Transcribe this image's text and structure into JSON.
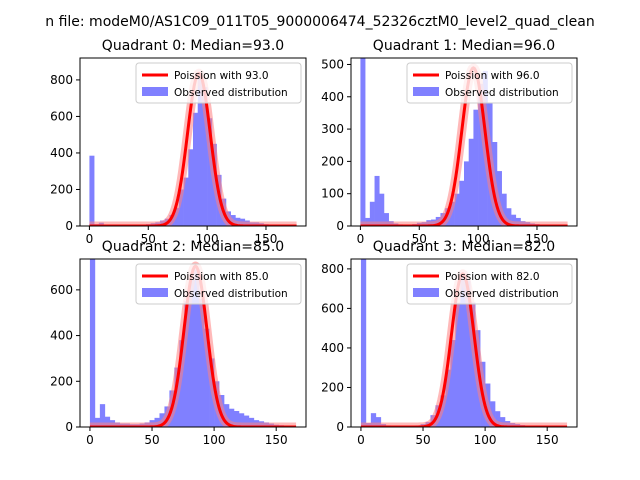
{
  "figure": {
    "suptitle": "n file: modeM0/AS1C09_011T05_9000006474_52326cztM0_level2_quad_clean"
  },
  "colors": {
    "hist": "#8080ff",
    "poisson_line": "#ff0000",
    "poisson_glow": "#ff8080",
    "axes": "#000000",
    "legend_border": "#cccccc"
  },
  "chart_data": [
    {
      "type": "bar",
      "title": "Quadrant 0: Median=93.0",
      "median": 93.0,
      "xlim": [
        -8,
        184
      ],
      "ylim": [
        0,
        920
      ],
      "xticks": [
        0,
        50,
        100,
        150
      ],
      "yticks": [
        0,
        200,
        400,
        600,
        800
      ],
      "bin_width": 4,
      "legend": [
        "Poission with 93.0",
        "Observed distribution"
      ],
      "legend_loc": "upper right",
      "bins": [
        [
          0,
          385
        ],
        [
          4,
          10
        ],
        [
          8,
          18
        ],
        [
          12,
          5
        ],
        [
          16,
          3
        ],
        [
          20,
          2
        ],
        [
          24,
          2
        ],
        [
          28,
          3
        ],
        [
          32,
          2
        ],
        [
          36,
          3
        ],
        [
          40,
          4
        ],
        [
          44,
          6
        ],
        [
          48,
          10
        ],
        [
          52,
          15
        ],
        [
          56,
          20
        ],
        [
          60,
          30
        ],
        [
          64,
          40
        ],
        [
          68,
          60
        ],
        [
          72,
          100
        ],
        [
          76,
          200
        ],
        [
          80,
          265
        ],
        [
          84,
          420
        ],
        [
          88,
          620
        ],
        [
          92,
          820
        ],
        [
          96,
          760
        ],
        [
          100,
          590
        ],
        [
          104,
          450
        ],
        [
          108,
          280
        ],
        [
          112,
          150
        ],
        [
          116,
          80
        ],
        [
          120,
          60
        ],
        [
          124,
          45
        ],
        [
          128,
          40
        ],
        [
          132,
          30
        ],
        [
          136,
          20
        ],
        [
          140,
          20
        ],
        [
          144,
          15
        ],
        [
          148,
          10
        ],
        [
          152,
          8
        ],
        [
          156,
          5
        ],
        [
          160,
          4
        ],
        [
          164,
          3
        ],
        [
          168,
          2
        ],
        [
          172,
          2
        ],
        [
          176,
          2
        ],
        [
          180,
          1
        ]
      ]
    },
    {
      "type": "bar",
      "title": "Quadrant 1: Median=96.0",
      "median": 96.0,
      "xlim": [
        -8,
        184
      ],
      "ylim": [
        0,
        520
      ],
      "xticks": [
        0,
        50,
        100,
        150
      ],
      "yticks": [
        0,
        100,
        200,
        300,
        400,
        500
      ],
      "bin_width": 4,
      "legend": [
        "Poission with 96.0",
        "Observed distribution"
      ],
      "legend_loc": "upper right",
      "bins": [
        [
          0,
          520
        ],
        [
          4,
          25
        ],
        [
          8,
          75
        ],
        [
          12,
          155
        ],
        [
          16,
          100
        ],
        [
          20,
          40
        ],
        [
          24,
          15
        ],
        [
          28,
          8
        ],
        [
          32,
          5
        ],
        [
          36,
          4
        ],
        [
          40,
          4
        ],
        [
          44,
          6
        ],
        [
          48,
          10
        ],
        [
          52,
          12
        ],
        [
          56,
          18
        ],
        [
          60,
          20
        ],
        [
          64,
          28
        ],
        [
          68,
          40
        ],
        [
          72,
          55
        ],
        [
          76,
          75
        ],
        [
          80,
          100
        ],
        [
          84,
          140
        ],
        [
          88,
          200
        ],
        [
          92,
          270
        ],
        [
          96,
          360
        ],
        [
          100,
          440
        ],
        [
          104,
          480
        ],
        [
          108,
          380
        ],
        [
          112,
          260
        ],
        [
          116,
          170
        ],
        [
          120,
          100
        ],
        [
          124,
          55
        ],
        [
          128,
          35
        ],
        [
          132,
          25
        ],
        [
          136,
          15
        ],
        [
          140,
          12
        ],
        [
          144,
          8
        ],
        [
          148,
          6
        ],
        [
          152,
          4
        ],
        [
          156,
          3
        ],
        [
          160,
          2
        ],
        [
          164,
          2
        ],
        [
          168,
          1
        ]
      ]
    },
    {
      "type": "bar",
      "title": "Quadrant 2: Median=85.0",
      "median": 85.0,
      "xlim": [
        -8,
        174
      ],
      "ylim": [
        0,
        735
      ],
      "xticks": [
        0,
        50,
        100,
        150
      ],
      "yticks": [
        0,
        200,
        400,
        600
      ],
      "bin_width": 4,
      "legend": [
        "Poission with 85.0",
        "Observed distribution"
      ],
      "legend_loc": "upper right",
      "bins": [
        [
          0,
          735
        ],
        [
          4,
          40
        ],
        [
          8,
          100
        ],
        [
          12,
          45
        ],
        [
          16,
          30
        ],
        [
          20,
          20
        ],
        [
          24,
          15
        ],
        [
          28,
          15
        ],
        [
          32,
          12
        ],
        [
          36,
          12
        ],
        [
          40,
          15
        ],
        [
          44,
          20
        ],
        [
          48,
          30
        ],
        [
          52,
          40
        ],
        [
          56,
          60
        ],
        [
          60,
          90
        ],
        [
          64,
          160
        ],
        [
          68,
          260
        ],
        [
          72,
          380
        ],
        [
          76,
          550
        ],
        [
          80,
          650
        ],
        [
          84,
          690
        ],
        [
          88,
          560
        ],
        [
          92,
          430
        ],
        [
          96,
          300
        ],
        [
          100,
          200
        ],
        [
          104,
          140
        ],
        [
          108,
          100
        ],
        [
          112,
          80
        ],
        [
          116,
          70
        ],
        [
          120,
          60
        ],
        [
          124,
          50
        ],
        [
          128,
          40
        ],
        [
          132,
          30
        ],
        [
          136,
          25
        ],
        [
          140,
          20
        ],
        [
          144,
          15
        ],
        [
          148,
          10
        ],
        [
          152,
          8
        ],
        [
          156,
          5
        ],
        [
          160,
          3
        ],
        [
          164,
          2
        ]
      ]
    },
    {
      "type": "bar",
      "title": "Quadrant 3: Median=82.0",
      "median": 82.0,
      "xlim": [
        -8,
        174
      ],
      "ylim": [
        0,
        850
      ],
      "xticks": [
        0,
        50,
        100,
        150
      ],
      "yticks": [
        0,
        200,
        400,
        600,
        800
      ],
      "bin_width": 4,
      "legend": [
        "Poission with 82.0",
        "Observed distribution"
      ],
      "legend_loc": "upper right",
      "bins": [
        [
          0,
          850
        ],
        [
          4,
          20
        ],
        [
          8,
          70
        ],
        [
          12,
          50
        ],
        [
          16,
          15
        ],
        [
          20,
          8
        ],
        [
          24,
          5
        ],
        [
          28,
          4
        ],
        [
          32,
          4
        ],
        [
          36,
          4
        ],
        [
          40,
          5
        ],
        [
          44,
          8
        ],
        [
          48,
          15
        ],
        [
          52,
          25
        ],
        [
          56,
          60
        ],
        [
          60,
          110
        ],
        [
          64,
          160
        ],
        [
          68,
          290
        ],
        [
          72,
          440
        ],
        [
          76,
          630
        ],
        [
          80,
          760
        ],
        [
          84,
          740
        ],
        [
          88,
          630
        ],
        [
          92,
          490
        ],
        [
          96,
          330
        ],
        [
          100,
          220
        ],
        [
          104,
          130
        ],
        [
          108,
          80
        ],
        [
          112,
          50
        ],
        [
          116,
          30
        ],
        [
          120,
          20
        ],
        [
          124,
          15
        ],
        [
          128,
          10
        ],
        [
          132,
          6
        ],
        [
          136,
          4
        ],
        [
          140,
          3
        ],
        [
          144,
          2
        ],
        [
          148,
          2
        ],
        [
          152,
          1
        ],
        [
          156,
          1
        ],
        [
          160,
          1
        ]
      ]
    }
  ]
}
